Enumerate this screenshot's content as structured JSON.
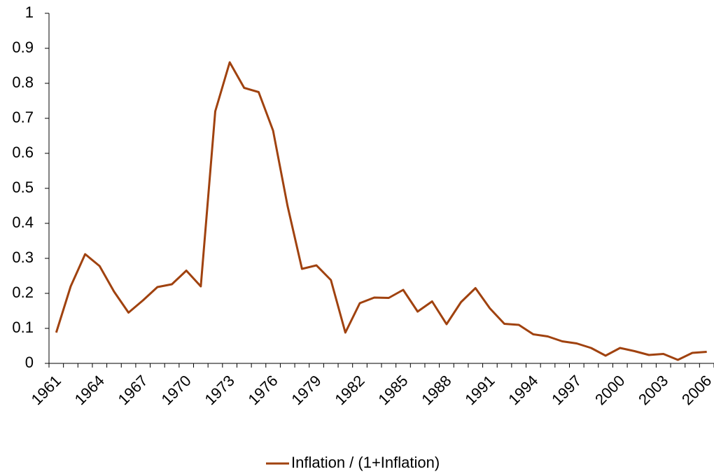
{
  "chart_data": {
    "type": "line",
    "categories": [
      "1961",
      null,
      null,
      "1964",
      null,
      null,
      "1967",
      null,
      null,
      "1970",
      null,
      null,
      "1973",
      null,
      null,
      "1976",
      null,
      null,
      "1979",
      null,
      null,
      "1982",
      null,
      null,
      "1985",
      null,
      null,
      "1988",
      null,
      null,
      "1991",
      null,
      null,
      "1994",
      null,
      null,
      "1997",
      null,
      null,
      "2000",
      null,
      null,
      "2003",
      null,
      null,
      "2006"
    ],
    "series": [
      {
        "name": "Inflation / (1+Inflation)",
        "color": "#a0420f",
        "values": [
          0.088,
          0.22,
          0.312,
          0.278,
          0.205,
          0.145,
          0.18,
          0.218,
          0.226,
          0.265,
          0.22,
          0.72,
          0.86,
          0.787,
          0.775,
          0.665,
          0.45,
          0.27,
          0.28,
          0.238,
          0.088,
          0.172,
          0.188,
          0.187,
          0.21,
          0.148,
          0.177,
          0.112,
          0.175,
          0.215,
          0.157,
          0.113,
          0.11,
          0.083,
          0.077,
          0.063,
          0.057,
          0.044,
          0.022,
          0.044,
          0.035,
          0.024,
          0.027,
          0.01,
          0.03,
          0.033
        ]
      }
    ],
    "ylim": [
      0,
      1
    ],
    "yticks": [
      0,
      0.1,
      0.2,
      0.3,
      0.4,
      0.5,
      0.6,
      0.7,
      0.8,
      0.9,
      1
    ],
    "grid": false,
    "legend": "bottom"
  }
}
